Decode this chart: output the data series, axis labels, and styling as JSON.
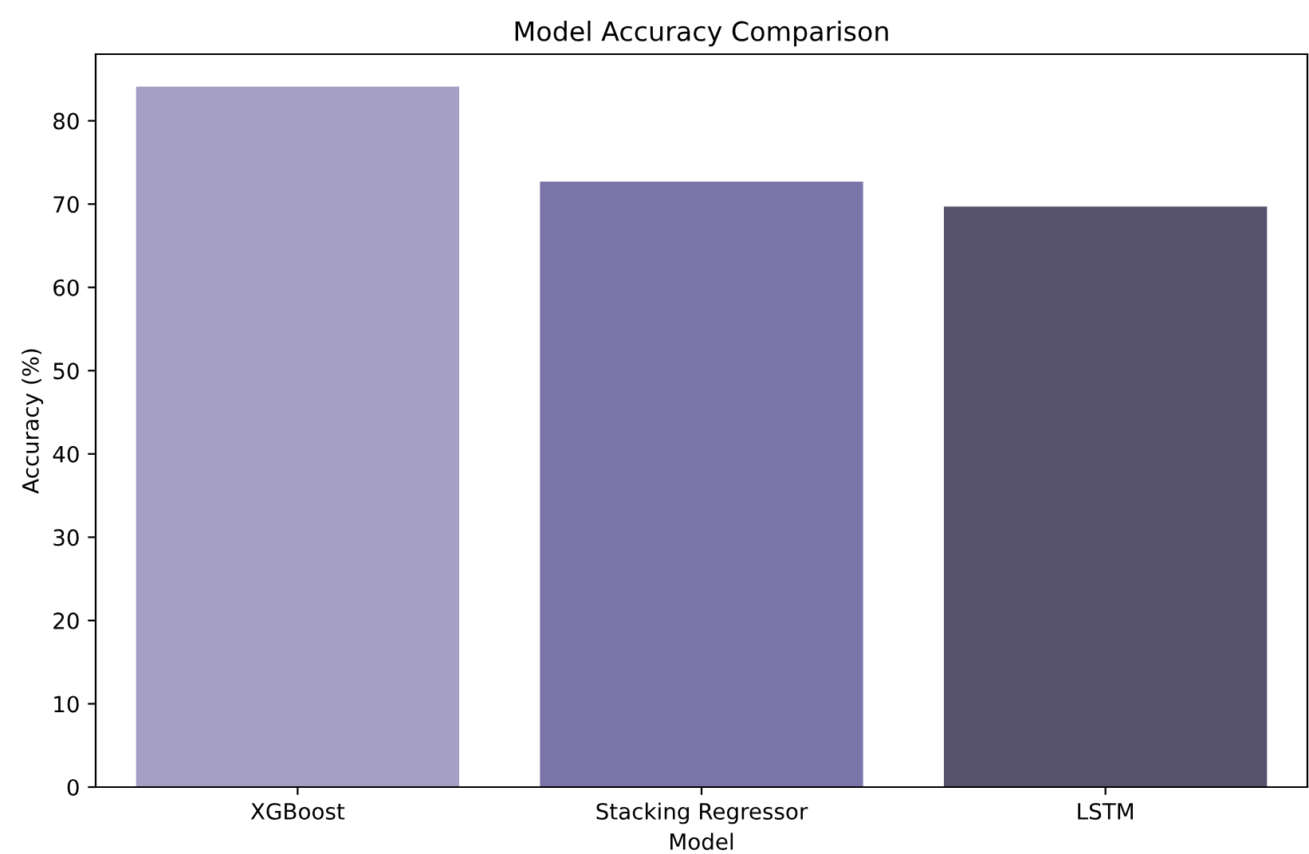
{
  "chart_data": {
    "type": "bar",
    "title": "Model Accuracy Comparison",
    "xlabel": "Model",
    "ylabel": "Accuracy (%)",
    "categories": [
      "XGBoost",
      "Stacking Regressor",
      "LSTM"
    ],
    "values": [
      84.1,
      72.7,
      69.7
    ],
    "colors": [
      "#a59fc4",
      "#7b74a8",
      "#57536c"
    ],
    "ylim": [
      0,
      88
    ],
    "yticks": [
      0,
      10,
      20,
      30,
      40,
      50,
      60,
      70,
      80
    ],
    "grid": false
  }
}
